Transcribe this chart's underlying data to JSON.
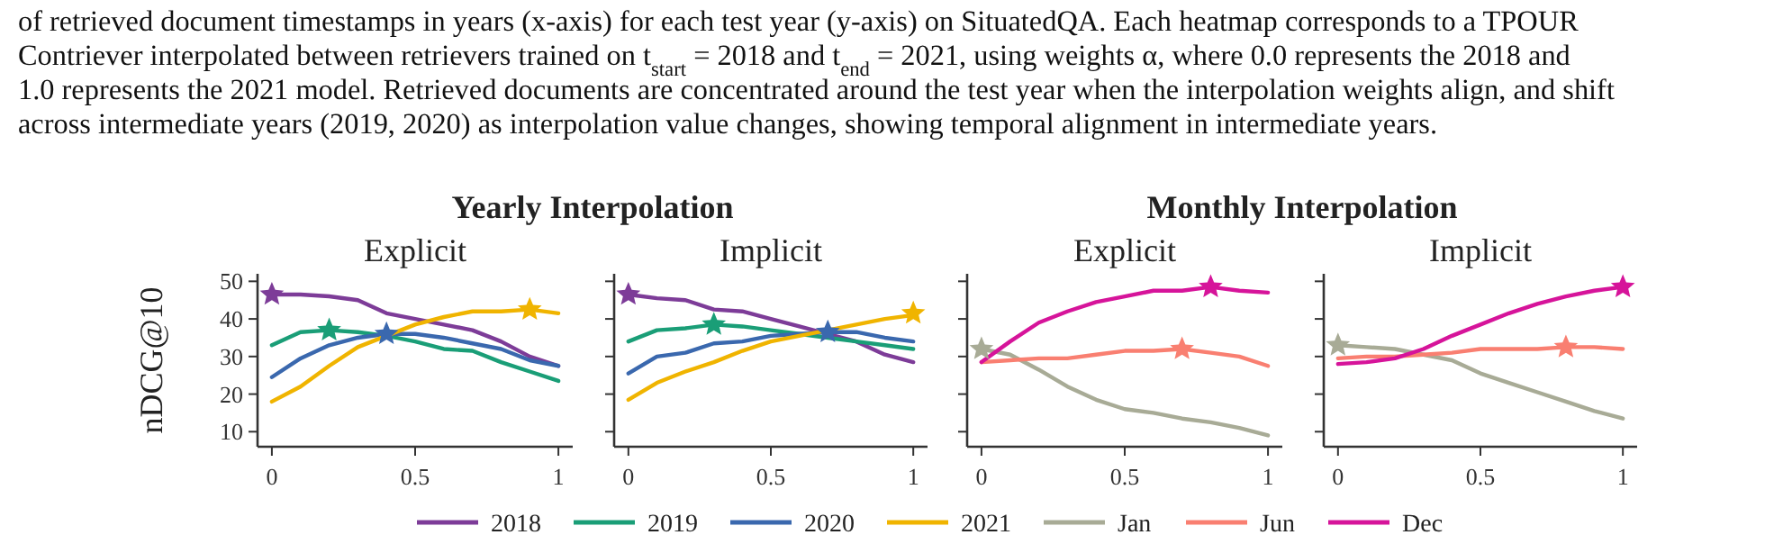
{
  "chart_data": [
    {
      "type": "line",
      "title": "Explicit",
      "ylabel": "nDCG@10",
      "annotations": [
        "of retrieved document timestamps in years (x-axis) for each test year (y-axis) on SituatedQA. Each heatmap corresponds to a TPOUR",
        "Contriever interpolated between retrievers trained on t$_{start}$ = 2018 and t$_{end}$ = 2021, using weights α, where 0.0 represents the 2018 and",
        "1.0 represents the 2021 model. Retrieved documents are concentrated around the test year when the interpolation weights align, and shift",
        "across intermediate years (2019, 2020) as interpolation value changes, showing temporal alignment in intermediate years.",
        "Yearly Interpolation"
      ],
      "x": [
        0,
        0.1,
        0.2,
        0.3,
        0.4,
        0.5,
        0.6,
        0.7,
        0.8,
        0.9,
        1
      ],
      "xlim": [
        -0.05,
        1.05
      ],
      "ylim": [
        6,
        52
      ],
      "xticks": [
        0,
        0.5,
        1
      ],
      "yticks": [
        10,
        20,
        30,
        40,
        50
      ],
      "legend": "bottom",
      "series": [
        {
          "name": "2018",
          "color": "#7d3c98",
          "values": [
            46.5,
            46.5,
            46,
            45,
            41.5,
            40,
            38.5,
            37,
            34,
            30,
            27.5
          ]
        },
        {
          "name": "2019",
          "color": "#1a9e77",
          "values": [
            33,
            36.5,
            37,
            36.5,
            35.5,
            34,
            32,
            31.5,
            28.5,
            26,
            23.5
          ]
        },
        {
          "name": "2020",
          "color": "#3a68ae",
          "values": [
            24.5,
            29.5,
            33,
            35,
            36,
            36,
            35,
            33.5,
            32,
            29,
            27.5
          ]
        },
        {
          "name": "2021",
          "color": "#f0b400",
          "values": [
            18,
            22,
            27.5,
            32.5,
            35.5,
            38.5,
            40.5,
            42,
            42,
            42.5,
            41.5
          ]
        },
        {
          "type": "scatter",
          "marker": "star",
          "x": [
            0,
            0.2,
            0.4,
            0.9
          ],
          "values": [
            46.5,
            37,
            36,
            42.5
          ],
          "colors": [
            "#7d3c98",
            "#1a9e77",
            "#3a68ae",
            "#f0b400"
          ]
        }
      ]
    },
    {
      "type": "line",
      "title": "Implicit",
      "x": [
        0,
        0.1,
        0.2,
        0.3,
        0.4,
        0.5,
        0.6,
        0.7,
        0.8,
        0.9,
        1
      ],
      "xlim": [
        -0.05,
        1.05
      ],
      "ylim": [
        6,
        52
      ],
      "xticks": [
        0,
        0.5,
        1
      ],
      "yticks": [
        10,
        20,
        30,
        40,
        50
      ],
      "tick_labels": "x",
      "legend": "bottom",
      "series": [
        {
          "name": "2018",
          "color": "#7d3c98",
          "values": [
            46.5,
            45.5,
            45,
            42.5,
            42,
            40,
            38,
            36,
            34,
            30.5,
            28.5
          ]
        },
        {
          "name": "2019",
          "color": "#1a9e77",
          "values": [
            34,
            37,
            37.5,
            38.5,
            38,
            37,
            36,
            35,
            34,
            33,
            32
          ]
        },
        {
          "name": "2020",
          "color": "#3a68ae",
          "values": [
            25.5,
            30,
            31,
            33.5,
            34,
            35.5,
            36,
            36.5,
            36.5,
            35,
            34
          ]
        },
        {
          "name": "2021",
          "color": "#f0b400",
          "values": [
            18.5,
            23,
            26,
            28.5,
            31.5,
            34,
            35.5,
            37,
            38.5,
            40,
            41
          ]
        },
        {
          "type": "scatter",
          "marker": "star",
          "x": [
            0,
            0.3,
            0.7,
            1
          ],
          "values": [
            46.5,
            38.5,
            36.5,
            41.5
          ],
          "colors": [
            "#7d3c98",
            "#1a9e77",
            "#3a68ae",
            "#f0b400"
          ]
        }
      ]
    },
    {
      "type": "line",
      "title": "Explicit",
      "annotations": [
        "Monthly Interpolation"
      ],
      "x": [
        0,
        0.1,
        0.2,
        0.3,
        0.4,
        0.5,
        0.6,
        0.7,
        0.8,
        0.9,
        1
      ],
      "xlim": [
        -0.05,
        1.05
      ],
      "ylim": [
        6,
        52
      ],
      "xticks": [
        0,
        0.5,
        1
      ],
      "yticks": [
        10,
        20,
        30,
        40,
        50
      ],
      "tick_labels": "x",
      "legend": "bottom",
      "series": [
        {
          "name": "Jan",
          "color": "#a8ab96",
          "values": [
            32,
            30.5,
            26.5,
            22,
            18.5,
            16,
            15,
            13.5,
            12.5,
            11,
            9
          ]
        },
        {
          "name": "Jun",
          "color": "#f97f71",
          "values": [
            28.5,
            29,
            29.5,
            29.5,
            30.5,
            31.5,
            31.5,
            32,
            31,
            30,
            27.5
          ]
        },
        {
          "name": "Dec",
          "color": "#d6149a",
          "values": [
            28.5,
            34,
            39,
            42,
            44.5,
            46,
            47.5,
            47.5,
            48.5,
            47.5,
            47
          ]
        },
        {
          "type": "scatter",
          "marker": "star",
          "x": [
            0,
            0.7,
            0.8
          ],
          "values": [
            32,
            32,
            48.5
          ],
          "colors": [
            "#a8ab96",
            "#f97f71",
            "#d6149a"
          ]
        }
      ]
    },
    {
      "type": "line",
      "title": "Implicit",
      "x": [
        0,
        0.1,
        0.2,
        0.3,
        0.4,
        0.5,
        0.6,
        0.7,
        0.8,
        0.9,
        1
      ],
      "xlim": [
        -0.05,
        1.05
      ],
      "ylim": [
        6,
        52
      ],
      "xticks": [
        0,
        0.5,
        1
      ],
      "yticks": [
        10,
        20,
        30,
        40,
        50
      ],
      "tick_labels": "x",
      "legend": "bottom",
      "series": [
        {
          "name": "Jan",
          "color": "#a8ab96",
          "values": [
            33,
            32.5,
            32,
            30.5,
            29,
            25.5,
            23,
            20.5,
            18,
            15.5,
            13.5
          ]
        },
        {
          "name": "Jun",
          "color": "#f97f71",
          "values": [
            29.5,
            30,
            30,
            30.5,
            31,
            32,
            32,
            32,
            32.5,
            32.5,
            32
          ]
        },
        {
          "name": "Dec",
          "color": "#d6149a",
          "values": [
            28,
            28.5,
            29.5,
            32,
            35.5,
            38.5,
            41.5,
            44,
            46,
            47.5,
            48.5
          ]
        },
        {
          "type": "scatter",
          "marker": "star",
          "x": [
            0,
            0.8,
            1
          ],
          "values": [
            33,
            32.5,
            48.5
          ],
          "colors": [
            "#a8ab96",
            "#f97f71",
            "#d6149a"
          ]
        }
      ]
    }
  ]
}
